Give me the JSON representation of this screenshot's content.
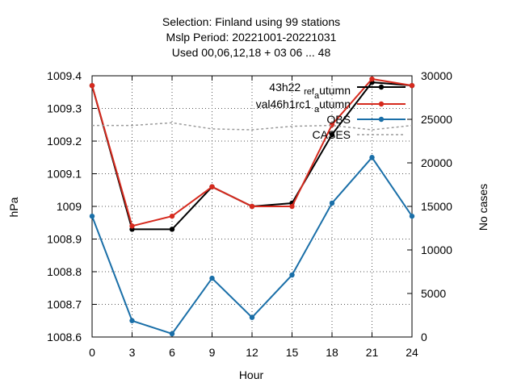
{
  "chart_data": {
    "type": "line",
    "title_lines": [
      "Selection: Finland using    99 stations",
      "Mslp   Period: 20221001-20221031",
      "Used  00,06,12,18  + 03 06 ... 48"
    ],
    "xlabel": "Hour",
    "ylabel": "hPa",
    "y2label": "No cases",
    "x": [
      0,
      3,
      6,
      9,
      12,
      15,
      18,
      21,
      24
    ],
    "xlim": [
      0,
      24
    ],
    "ylim": [
      1008.6,
      1009.4
    ],
    "y2lim": [
      0,
      30000
    ],
    "x_ticks": [
      0,
      3,
      6,
      9,
      12,
      15,
      18,
      21,
      24
    ],
    "y_ticks": [
      1008.6,
      1008.7,
      1008.8,
      1008.9,
      1009,
      1009.1,
      1009.2,
      1009.3,
      1009.4
    ],
    "y_tick_labels": [
      "1008.6",
      "1008.7",
      "1008.8",
      "1008.9",
      "1009",
      "1009.1",
      "1009.2",
      "1009.3",
      "1009.4"
    ],
    "y2_ticks": [
      0,
      5000,
      10000,
      15000,
      20000,
      25000,
      30000
    ],
    "y2_tick_labels": [
      "0",
      "5000",
      "10000",
      "15000",
      "20000",
      "25000",
      "30000"
    ],
    "grid": true,
    "legend_position": "top-right",
    "series": [
      {
        "name_parts": [
          "43h22",
          "ref",
          "a",
          "utumn"
        ],
        "color": "#000000",
        "axis": "y",
        "values": [
          1009.37,
          1008.93,
          1008.93,
          1009.06,
          1009.0,
          1009.01,
          1009.22,
          1009.38,
          1009.37
        ]
      },
      {
        "name_parts": [
          "val46h1rc1",
          "",
          "a",
          "utumn"
        ],
        "color": "#d62a1e",
        "axis": "y",
        "values": [
          1009.37,
          1008.94,
          1008.97,
          1009.06,
          1009.0,
          1009.0,
          1009.25,
          1009.39,
          1009.37
        ]
      },
      {
        "name": "OBS",
        "color": "#1a6fa8",
        "axis": "y",
        "values": [
          1008.97,
          1008.65,
          1008.61,
          1008.78,
          1008.66,
          1008.79,
          1009.01,
          1009.15,
          1008.97
        ]
      },
      {
        "name": "CASES",
        "color": "#9a9a9a",
        "axis": "y2",
        "dashed": true,
        "values": [
          24300,
          24300,
          24600,
          23900,
          23800,
          24200,
          24300,
          23800,
          24300
        ]
      }
    ]
  }
}
